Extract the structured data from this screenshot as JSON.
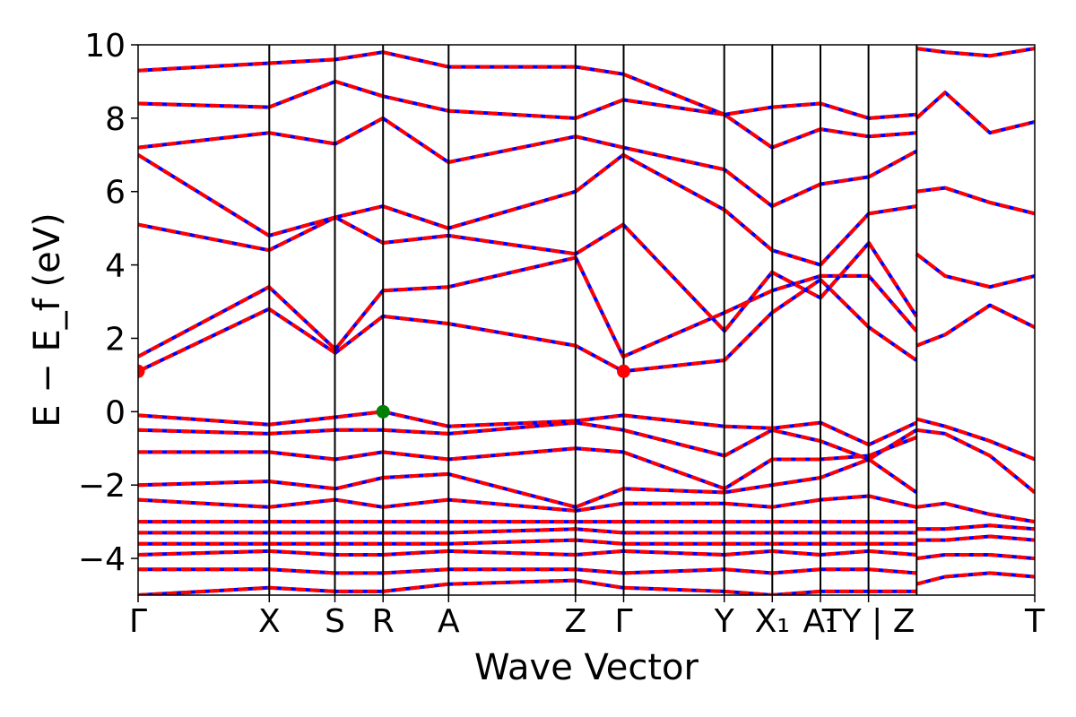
{
  "chart_data": {
    "type": "line",
    "title": "",
    "xlabel": "Wave Vector",
    "ylabel": "E − E_f (eV)",
    "ylim": [
      -5,
      10
    ],
    "xlim": [
      0,
      1
    ],
    "y_ticks": [
      10,
      8,
      6,
      4,
      2,
      0,
      -2,
      -4
    ],
    "grid": false,
    "kpoints": [
      {
        "label": "Γ",
        "x": 0.0
      },
      {
        "label": "X",
        "x": 0.1463
      },
      {
        "label": "S",
        "x": 0.2195
      },
      {
        "label": "R",
        "x": 0.2732
      },
      {
        "label": "A",
        "x": 0.3463
      },
      {
        "label": "Z",
        "x": 0.4878
      },
      {
        "label": "Γ",
        "x": 0.5415
      },
      {
        "label": "Y",
        "x": 0.6537
      },
      {
        "label": "X₁",
        "x": 0.7073
      },
      {
        "label": "A₁",
        "x": 0.761
      },
      {
        "label": "TY | Z",
        "x": 0.8146
      },
      {
        "label": "T",
        "x": 1.0
      }
    ],
    "segment_break_x": 0.8683,
    "series_styles": [
      {
        "color": "#0000ff",
        "style": "solid"
      },
      {
        "color": "#ff0000",
        "style": "dashed"
      }
    ],
    "markers": [
      {
        "x": 0.2732,
        "y": 0.0,
        "color": "#008000"
      },
      {
        "x": 0.0,
        "y": 1.1,
        "color": "#ff0000"
      },
      {
        "x": 0.5415,
        "y": 1.1,
        "color": "#ff0000"
      }
    ],
    "bands": [
      [
        [
          0,
          -5.0
        ],
        [
          0.146,
          -4.8
        ],
        [
          0.22,
          -4.9
        ],
        [
          0.273,
          -4.9
        ],
        [
          0.346,
          -4.7
        ],
        [
          0.488,
          -4.6
        ],
        [
          0.541,
          -4.8
        ],
        [
          0.654,
          -4.9
        ],
        [
          0.707,
          -5.0
        ],
        [
          0.761,
          -4.9
        ],
        [
          0.815,
          -4.9
        ],
        [
          0.868,
          -4.9
        ]
      ],
      [
        [
          0,
          -4.3
        ],
        [
          0.146,
          -4.3
        ],
        [
          0.22,
          -4.4
        ],
        [
          0.273,
          -4.4
        ],
        [
          0.346,
          -4.3
        ],
        [
          0.488,
          -4.3
        ],
        [
          0.541,
          -4.4
        ],
        [
          0.654,
          -4.3
        ],
        [
          0.707,
          -4.4
        ],
        [
          0.761,
          -4.3
        ],
        [
          0.815,
          -4.3
        ],
        [
          0.868,
          -4.4
        ]
      ],
      [
        [
          0,
          -3.9
        ],
        [
          0.146,
          -3.8
        ],
        [
          0.22,
          -3.9
        ],
        [
          0.273,
          -3.9
        ],
        [
          0.346,
          -3.8
        ],
        [
          0.488,
          -3.9
        ],
        [
          0.541,
          -3.8
        ],
        [
          0.654,
          -3.9
        ],
        [
          0.707,
          -3.8
        ],
        [
          0.761,
          -3.9
        ],
        [
          0.815,
          -3.8
        ],
        [
          0.868,
          -3.9
        ]
      ],
      [
        [
          0,
          -3.6
        ],
        [
          0.146,
          -3.6
        ],
        [
          0.22,
          -3.6
        ],
        [
          0.273,
          -3.6
        ],
        [
          0.346,
          -3.6
        ],
        [
          0.488,
          -3.5
        ],
        [
          0.541,
          -3.6
        ],
        [
          0.654,
          -3.6
        ],
        [
          0.707,
          -3.6
        ],
        [
          0.761,
          -3.6
        ],
        [
          0.815,
          -3.6
        ],
        [
          0.868,
          -3.6
        ]
      ],
      [
        [
          0,
          -3.3
        ],
        [
          0.146,
          -3.3
        ],
        [
          0.22,
          -3.3
        ],
        [
          0.273,
          -3.3
        ],
        [
          0.346,
          -3.3
        ],
        [
          0.488,
          -3.2
        ],
        [
          0.541,
          -3.3
        ],
        [
          0.654,
          -3.3
        ],
        [
          0.707,
          -3.3
        ],
        [
          0.761,
          -3.3
        ],
        [
          0.815,
          -3.3
        ],
        [
          0.868,
          -3.3
        ]
      ],
      [
        [
          0,
          -3.0
        ],
        [
          0.146,
          -3.0
        ],
        [
          0.22,
          -3.0
        ],
        [
          0.273,
          -3.0
        ],
        [
          0.346,
          -3.0
        ],
        [
          0.488,
          -3.0
        ],
        [
          0.541,
          -3.0
        ],
        [
          0.654,
          -3.0
        ],
        [
          0.707,
          -3.0
        ],
        [
          0.761,
          -3.0
        ],
        [
          0.815,
          -3.0
        ],
        [
          0.868,
          -3.0
        ]
      ],
      [
        [
          0,
          -2.4
        ],
        [
          0.146,
          -2.6
        ],
        [
          0.22,
          -2.4
        ],
        [
          0.273,
          -2.6
        ],
        [
          0.346,
          -2.4
        ],
        [
          0.488,
          -2.7
        ],
        [
          0.541,
          -2.5
        ],
        [
          0.654,
          -2.5
        ],
        [
          0.707,
          -2.6
        ],
        [
          0.761,
          -2.4
        ],
        [
          0.815,
          -2.3
        ],
        [
          0.868,
          -2.6
        ]
      ],
      [
        [
          0,
          -2.0
        ],
        [
          0.146,
          -1.9
        ],
        [
          0.22,
          -2.1
        ],
        [
          0.273,
          -1.8
        ],
        [
          0.346,
          -1.7
        ],
        [
          0.488,
          -2.6
        ],
        [
          0.541,
          -2.1
        ],
        [
          0.654,
          -2.2
        ],
        [
          0.707,
          -2.0
        ],
        [
          0.761,
          -1.8
        ],
        [
          0.815,
          -1.3
        ],
        [
          0.868,
          -2.2
        ]
      ],
      [
        [
          0,
          -1.1
        ],
        [
          0.146,
          -1.1
        ],
        [
          0.22,
          -1.3
        ],
        [
          0.273,
          -1.1
        ],
        [
          0.346,
          -1.3
        ],
        [
          0.488,
          -1.0
        ],
        [
          0.541,
          -1.1
        ],
        [
          0.654,
          -2.1
        ],
        [
          0.707,
          -1.3
        ],
        [
          0.761,
          -1.3
        ],
        [
          0.815,
          -1.2
        ],
        [
          0.868,
          -0.7
        ]
      ],
      [
        [
          0,
          -0.5
        ],
        [
          0.146,
          -0.6
        ],
        [
          0.22,
          -0.5
        ],
        [
          0.273,
          -0.5
        ],
        [
          0.346,
          -0.6
        ],
        [
          0.488,
          -0.3
        ],
        [
          0.541,
          -0.5
        ],
        [
          0.654,
          -1.2
        ],
        [
          0.707,
          -0.5
        ],
        [
          0.761,
          -0.8
        ],
        [
          0.815,
          -1.3
        ],
        [
          0.868,
          -0.5
        ]
      ],
      [
        [
          0,
          -0.1
        ],
        [
          0.146,
          -0.35
        ],
        [
          0.22,
          -0.15
        ],
        [
          0.273,
          0.0
        ],
        [
          0.346,
          -0.4
        ],
        [
          0.488,
          -0.25
        ],
        [
          0.541,
          -0.1
        ],
        [
          0.654,
          -0.4
        ],
        [
          0.707,
          -0.45
        ],
        [
          0.761,
          -0.3
        ],
        [
          0.815,
          -0.9
        ],
        [
          0.868,
          -0.3
        ]
      ],
      [
        [
          0,
          1.1
        ],
        [
          0.146,
          2.8
        ],
        [
          0.22,
          1.6
        ],
        [
          0.273,
          2.6
        ],
        [
          0.346,
          2.4
        ],
        [
          0.488,
          1.8
        ],
        [
          0.541,
          1.1
        ],
        [
          0.654,
          1.4
        ],
        [
          0.707,
          2.7
        ],
        [
          0.761,
          3.6
        ],
        [
          0.815,
          2.3
        ],
        [
          0.868,
          1.4
        ]
      ],
      [
        [
          0,
          1.5
        ],
        [
          0.146,
          3.4
        ],
        [
          0.22,
          1.7
        ],
        [
          0.273,
          3.3
        ],
        [
          0.346,
          3.4
        ],
        [
          0.488,
          4.2
        ],
        [
          0.541,
          1.5
        ],
        [
          0.654,
          2.7
        ],
        [
          0.707,
          3.3
        ],
        [
          0.761,
          3.7
        ],
        [
          0.815,
          3.7
        ],
        [
          0.868,
          2.2
        ]
      ],
      [
        [
          0,
          5.1
        ],
        [
          0.146,
          4.4
        ],
        [
          0.22,
          5.3
        ],
        [
          0.273,
          4.6
        ],
        [
          0.346,
          4.8
        ],
        [
          0.488,
          4.3
        ],
        [
          0.541,
          5.1
        ],
        [
          0.654,
          2.2
        ],
        [
          0.707,
          3.8
        ],
        [
          0.761,
          3.1
        ],
        [
          0.815,
          4.6
        ],
        [
          0.868,
          2.6
        ]
      ],
      [
        [
          0,
          7.0
        ],
        [
          0.146,
          4.8
        ],
        [
          0.22,
          5.3
        ],
        [
          0.273,
          5.6
        ],
        [
          0.346,
          5.0
        ],
        [
          0.488,
          6.0
        ],
        [
          0.541,
          7.0
        ],
        [
          0.654,
          5.5
        ],
        [
          0.707,
          4.4
        ],
        [
          0.761,
          4.0
        ],
        [
          0.815,
          5.4
        ],
        [
          0.868,
          5.6
        ]
      ],
      [
        [
          0,
          7.2
        ],
        [
          0.146,
          7.6
        ],
        [
          0.22,
          7.3
        ],
        [
          0.273,
          8.0
        ],
        [
          0.346,
          6.8
        ],
        [
          0.488,
          7.5
        ],
        [
          0.541,
          7.2
        ],
        [
          0.654,
          6.6
        ],
        [
          0.707,
          5.6
        ],
        [
          0.761,
          6.2
        ],
        [
          0.815,
          6.4
        ],
        [
          0.868,
          7.1
        ]
      ],
      [
        [
          0,
          8.4
        ],
        [
          0.146,
          8.3
        ],
        [
          0.22,
          9.0
        ],
        [
          0.273,
          8.6
        ],
        [
          0.346,
          8.2
        ],
        [
          0.488,
          8.0
        ],
        [
          0.541,
          8.5
        ],
        [
          0.654,
          8.1
        ],
        [
          0.707,
          7.2
        ],
        [
          0.761,
          7.7
        ],
        [
          0.815,
          7.5
        ],
        [
          0.868,
          7.6
        ]
      ],
      [
        [
          0,
          9.3
        ],
        [
          0.146,
          9.5
        ],
        [
          0.22,
          9.6
        ],
        [
          0.273,
          9.8
        ],
        [
          0.346,
          9.4
        ],
        [
          0.488,
          9.4
        ],
        [
          0.541,
          9.2
        ],
        [
          0.654,
          8.1
        ],
        [
          0.707,
          8.3
        ],
        [
          0.761,
          8.4
        ],
        [
          0.815,
          8.0
        ],
        [
          0.868,
          8.1
        ]
      ],
      [
        [
          0.868,
          -4.7
        ],
        [
          0.9,
          -4.5
        ],
        [
          0.95,
          -4.4
        ],
        [
          1.0,
          -4.5
        ]
      ],
      [
        [
          0.868,
          -4.0
        ],
        [
          0.9,
          -3.9
        ],
        [
          0.95,
          -3.9
        ],
        [
          1.0,
          -4.0
        ]
      ],
      [
        [
          0.868,
          -3.5
        ],
        [
          0.9,
          -3.5
        ],
        [
          0.95,
          -3.4
        ],
        [
          1.0,
          -3.5
        ]
      ],
      [
        [
          0.868,
          -3.2
        ],
        [
          0.9,
          -3.2
        ],
        [
          0.95,
          -3.1
        ],
        [
          1.0,
          -3.2
        ]
      ],
      [
        [
          0.868,
          -2.6
        ],
        [
          0.9,
          -2.5
        ],
        [
          0.95,
          -2.8
        ],
        [
          1.0,
          -3.0
        ]
      ],
      [
        [
          0.868,
          -0.5
        ],
        [
          0.9,
          -0.6
        ],
        [
          0.95,
          -1.2
        ],
        [
          1.0,
          -2.2
        ]
      ],
      [
        [
          0.868,
          -0.2
        ],
        [
          0.9,
          -0.4
        ],
        [
          0.95,
          -0.8
        ],
        [
          1.0,
          -1.3
        ]
      ],
      [
        [
          0.868,
          1.8
        ],
        [
          0.9,
          2.1
        ],
        [
          0.95,
          2.9
        ],
        [
          1.0,
          2.3
        ]
      ],
      [
        [
          0.868,
          4.3
        ],
        [
          0.9,
          3.7
        ],
        [
          0.95,
          3.4
        ],
        [
          1.0,
          3.7
        ]
      ],
      [
        [
          0.868,
          6.0
        ],
        [
          0.9,
          6.1
        ],
        [
          0.95,
          5.7
        ],
        [
          1.0,
          5.4
        ]
      ],
      [
        [
          0.868,
          8.0
        ],
        [
          0.9,
          8.7
        ],
        [
          0.95,
          7.6
        ],
        [
          1.0,
          7.9
        ]
      ],
      [
        [
          0.868,
          9.9
        ],
        [
          0.9,
          9.8
        ],
        [
          0.95,
          9.7
        ],
        [
          1.0,
          9.9
        ]
      ]
    ]
  }
}
